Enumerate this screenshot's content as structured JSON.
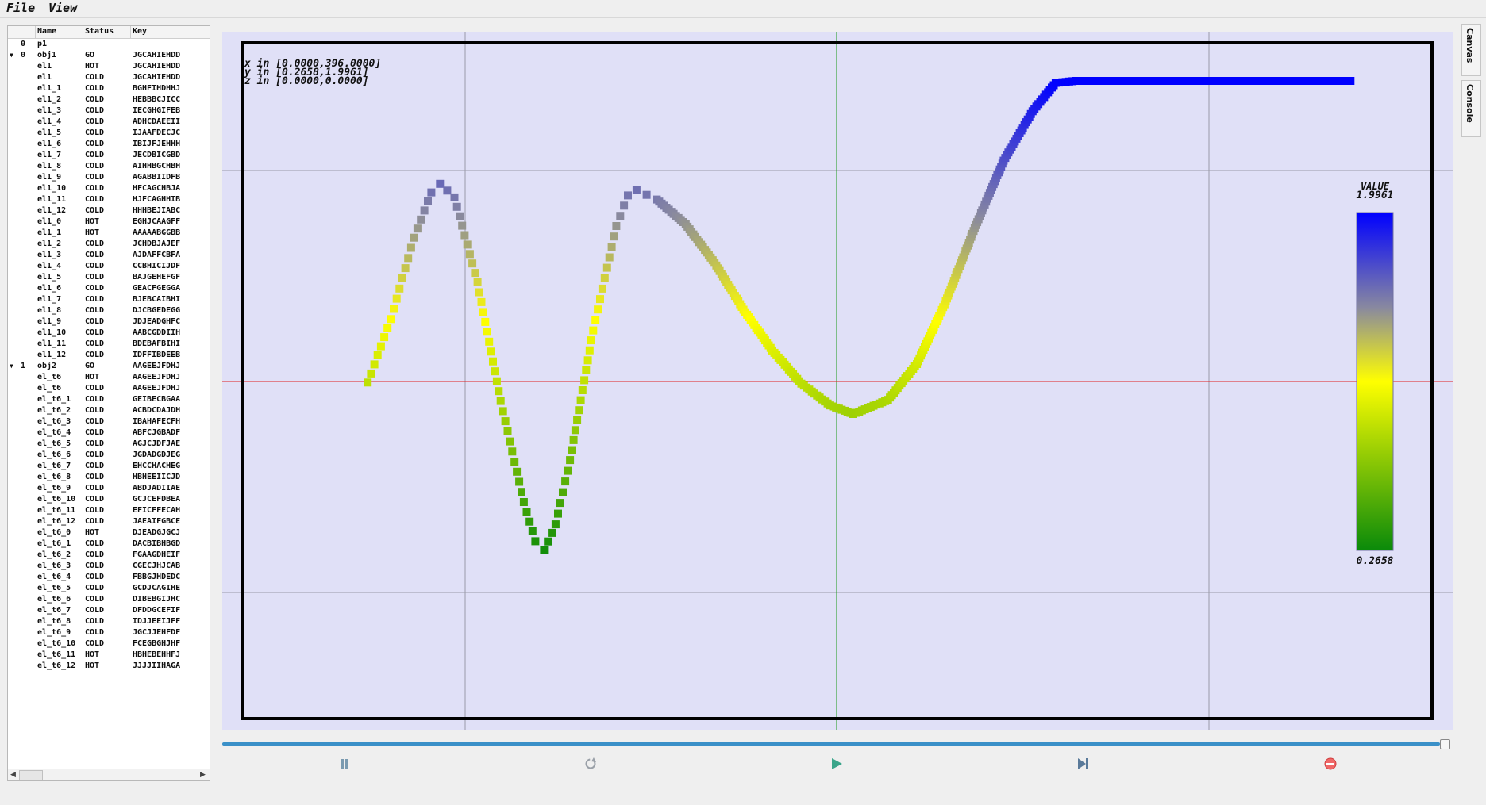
{
  "menu": {
    "file": "File",
    "view": "View"
  },
  "tree": {
    "columns": {
      "name": "Name",
      "status": "Status",
      "key": "Key"
    },
    "rows": [
      {
        "arrow": "",
        "idx": "0",
        "name": "p1",
        "status": "",
        "key": ""
      },
      {
        "arrow": "▼",
        "idx": "0",
        "name": "obj1",
        "status": "GO",
        "key": "JGCAHIEHDD"
      },
      {
        "arrow": "",
        "idx": "",
        "name": "el1",
        "status": "HOT",
        "key": "JGCAHIEHDD"
      },
      {
        "arrow": "",
        "idx": "",
        "name": "el1",
        "status": "COLD",
        "key": "JGCAHIEHDD"
      },
      {
        "arrow": "",
        "idx": "",
        "name": "el1_1",
        "status": "COLD",
        "key": "BGHFIHDHHJ"
      },
      {
        "arrow": "",
        "idx": "",
        "name": "el1_2",
        "status": "COLD",
        "key": "HEBBBCJICC"
      },
      {
        "arrow": "",
        "idx": "",
        "name": "el1_3",
        "status": "COLD",
        "key": "IECGHGIFEB"
      },
      {
        "arrow": "",
        "idx": "",
        "name": "el1_4",
        "status": "COLD",
        "key": "ADHCDAEEII"
      },
      {
        "arrow": "",
        "idx": "",
        "name": "el1_5",
        "status": "COLD",
        "key": "IJAAFDECJC"
      },
      {
        "arrow": "",
        "idx": "",
        "name": "el1_6",
        "status": "COLD",
        "key": "IBIJFJEHHH"
      },
      {
        "arrow": "",
        "idx": "",
        "name": "el1_7",
        "status": "COLD",
        "key": "JECDBICGBD"
      },
      {
        "arrow": "",
        "idx": "",
        "name": "el1_8",
        "status": "COLD",
        "key": "AIHHBGCHBH"
      },
      {
        "arrow": "",
        "idx": "",
        "name": "el1_9",
        "status": "COLD",
        "key": "AGABBIIDFB"
      },
      {
        "arrow": "",
        "idx": "",
        "name": "el1_10",
        "status": "COLD",
        "key": "HFCAGCHBJA"
      },
      {
        "arrow": "",
        "idx": "",
        "name": "el1_11",
        "status": "COLD",
        "key": "HJFCAGHHIB"
      },
      {
        "arrow": "",
        "idx": "",
        "name": "el1_12",
        "status": "COLD",
        "key": "HHHBEJIABC"
      },
      {
        "arrow": "",
        "idx": "",
        "name": "el1_0",
        "status": "HOT",
        "key": "EGHJCAAGFF"
      },
      {
        "arrow": "",
        "idx": "",
        "name": "el1_1",
        "status": "HOT",
        "key": "AAAAABGGBB"
      },
      {
        "arrow": "",
        "idx": "",
        "name": "el1_2",
        "status": "COLD",
        "key": "JCHDBJAJEF"
      },
      {
        "arrow": "",
        "idx": "",
        "name": "el1_3",
        "status": "COLD",
        "key": "AJDAFFCBFA"
      },
      {
        "arrow": "",
        "idx": "",
        "name": "el1_4",
        "status": "COLD",
        "key": "CCBHICIJDF"
      },
      {
        "arrow": "",
        "idx": "",
        "name": "el1_5",
        "status": "COLD",
        "key": "BAJGEHEFGF"
      },
      {
        "arrow": "",
        "idx": "",
        "name": "el1_6",
        "status": "COLD",
        "key": "GEACFGEGGA"
      },
      {
        "arrow": "",
        "idx": "",
        "name": "el1_7",
        "status": "COLD",
        "key": "BJEBCAIBHI"
      },
      {
        "arrow": "",
        "idx": "",
        "name": "el1_8",
        "status": "COLD",
        "key": "DJCBGEDEGG"
      },
      {
        "arrow": "",
        "idx": "",
        "name": "el1_9",
        "status": "COLD",
        "key": "JDJEADGHFC"
      },
      {
        "arrow": "",
        "idx": "",
        "name": "el1_10",
        "status": "COLD",
        "key": "AABCGDDIIH"
      },
      {
        "arrow": "",
        "idx": "",
        "name": "el1_11",
        "status": "COLD",
        "key": "BDEBAFBIHI"
      },
      {
        "arrow": "",
        "idx": "",
        "name": "el1_12",
        "status": "COLD",
        "key": "IDFFIBDEEB"
      },
      {
        "arrow": "▼",
        "idx": "1",
        "name": "obj2",
        "status": "GO",
        "key": "AAGEEJFDHJ"
      },
      {
        "arrow": "",
        "idx": "",
        "name": "el_t6",
        "status": "HOT",
        "key": "AAGEEJFDHJ"
      },
      {
        "arrow": "",
        "idx": "",
        "name": "el_t6",
        "status": "COLD",
        "key": "AAGEEJFDHJ"
      },
      {
        "arrow": "",
        "idx": "",
        "name": "el_t6_1",
        "status": "COLD",
        "key": "GEIBECBGAA"
      },
      {
        "arrow": "",
        "idx": "",
        "name": "el_t6_2",
        "status": "COLD",
        "key": "ACBDCDAJDH"
      },
      {
        "arrow": "",
        "idx": "",
        "name": "el_t6_3",
        "status": "COLD",
        "key": "IBAHAFECFH"
      },
      {
        "arrow": "",
        "idx": "",
        "name": "el_t6_4",
        "status": "COLD",
        "key": "ABFCJGBADF"
      },
      {
        "arrow": "",
        "idx": "",
        "name": "el_t6_5",
        "status": "COLD",
        "key": "AGJCJDFJAE"
      },
      {
        "arrow": "",
        "idx": "",
        "name": "el_t6_6",
        "status": "COLD",
        "key": "JGDADGDJEG"
      },
      {
        "arrow": "",
        "idx": "",
        "name": "el_t6_7",
        "status": "COLD",
        "key": "EHCCHACHEG"
      },
      {
        "arrow": "",
        "idx": "",
        "name": "el_t6_8",
        "status": "COLD",
        "key": "HBHEEIICJD"
      },
      {
        "arrow": "",
        "idx": "",
        "name": "el_t6_9",
        "status": "COLD",
        "key": "ABDJADIIAE"
      },
      {
        "arrow": "",
        "idx": "",
        "name": "el_t6_10",
        "status": "COLD",
        "key": "GCJCEFDBEA"
      },
      {
        "arrow": "",
        "idx": "",
        "name": "el_t6_11",
        "status": "COLD",
        "key": "EFICFFECAH"
      },
      {
        "arrow": "",
        "idx": "",
        "name": "el_t6_12",
        "status": "COLD",
        "key": "JAEAIFGBCE"
      },
      {
        "arrow": "",
        "idx": "",
        "name": "el_t6_0",
        "status": "HOT",
        "key": "DJEADGJGCJ"
      },
      {
        "arrow": "",
        "idx": "",
        "name": "el_t6_1",
        "status": "COLD",
        "key": "DACBIBHBGD"
      },
      {
        "arrow": "",
        "idx": "",
        "name": "el_t6_2",
        "status": "COLD",
        "key": "FGAAGDHEIF"
      },
      {
        "arrow": "",
        "idx": "",
        "name": "el_t6_3",
        "status": "COLD",
        "key": "CGECJHJCAB"
      },
      {
        "arrow": "",
        "idx": "",
        "name": "el_t6_4",
        "status": "COLD",
        "key": "FBBGJHDEDC"
      },
      {
        "arrow": "",
        "idx": "",
        "name": "el_t6_5",
        "status": "COLD",
        "key": "GCDJCAGIHE"
      },
      {
        "arrow": "",
        "idx": "",
        "name": "el_t6_6",
        "status": "COLD",
        "key": "DIBEBGIJHC"
      },
      {
        "arrow": "",
        "idx": "",
        "name": "el_t6_7",
        "status": "COLD",
        "key": "DFDDGCEFIF"
      },
      {
        "arrow": "",
        "idx": "",
        "name": "el_t6_8",
        "status": "COLD",
        "key": "IDJJEEIJFF"
      },
      {
        "arrow": "",
        "idx": "",
        "name": "el_t6_9",
        "status": "COLD",
        "key": "JGCJJEHFDF"
      },
      {
        "arrow": "",
        "idx": "",
        "name": "el_t6_10",
        "status": "COLD",
        "key": "FCEGBGHJHF"
      },
      {
        "arrow": "",
        "idx": "",
        "name": "el_t6_11",
        "status": "HOT",
        "key": "HBHEBEHHFJ"
      },
      {
        "arrow": "",
        "idx": "",
        "name": "el_t6_12",
        "status": "HOT",
        "key": "JJJJIIHAGA"
      }
    ]
  },
  "canvas": {
    "info_x": "x in [0.0000,396.0000]",
    "info_y": "y in [0.2658,1.9961]",
    "info_z": "z in [0.0000,0.0000]",
    "background": "#e0e0f7"
  },
  "colorbar": {
    "label": "VALUE",
    "max_label": "1.9961",
    "min_label": "0.2658",
    "colors": [
      "#0a8a0a",
      "#ffff00",
      "#8888a0",
      "#0000ff"
    ]
  },
  "controls": {
    "pause_icon": "pause-icon",
    "reload_icon": "reload-icon",
    "play_icon": "play-icon",
    "step_icon": "step-forward-icon",
    "stop_icon": "stop-icon"
  },
  "slider": {
    "value_fraction": 1.0
  },
  "side_tabs": {
    "canvas": "Canvas",
    "console": "Console"
  },
  "chart_data": {
    "type": "scatter",
    "x_range": [
      0,
      396
    ],
    "y_range": [
      0.2658,
      1.9961
    ],
    "colorbar_range": [
      0.2658,
      1.9961
    ],
    "series": [
      {
        "points": [
          [
            30,
            0.903
          ],
          [
            38,
            1.133
          ],
          [
            46,
            1.428
          ],
          [
            52,
            1.592
          ],
          [
            55,
            1.623
          ],
          [
            60,
            1.574
          ],
          [
            68,
            1.266
          ],
          [
            76,
            0.836
          ],
          [
            84,
            0.47
          ],
          [
            88,
            0.328
          ],
          [
            91,
            0.296
          ],
          [
            95,
            0.389
          ],
          [
            100,
            0.622
          ],
          [
            108,
            1.092
          ],
          [
            116,
            1.47
          ],
          [
            120,
            1.581
          ],
          [
            123,
            1.6
          ],
          [
            130,
            1.566
          ],
          [
            140,
            1.477
          ],
          [
            150,
            1.337
          ],
          [
            160,
            1.167
          ],
          [
            170,
            1.019
          ],
          [
            180,
            0.899
          ],
          [
            190,
            0.82
          ],
          [
            198,
            0.789
          ],
          [
            210,
            0.84
          ],
          [
            220,
            0.97
          ],
          [
            230,
            1.197
          ],
          [
            240,
            1.463
          ],
          [
            250,
            1.707
          ],
          [
            260,
            1.886
          ],
          [
            268,
            1.989
          ],
          [
            275,
            1.996
          ],
          [
            290,
            1.996
          ],
          [
            310,
            1.996
          ],
          [
            330,
            1.996
          ],
          [
            355,
            1.996
          ],
          [
            370,
            1.996
          ]
        ]
      }
    ],
    "grid": true
  }
}
